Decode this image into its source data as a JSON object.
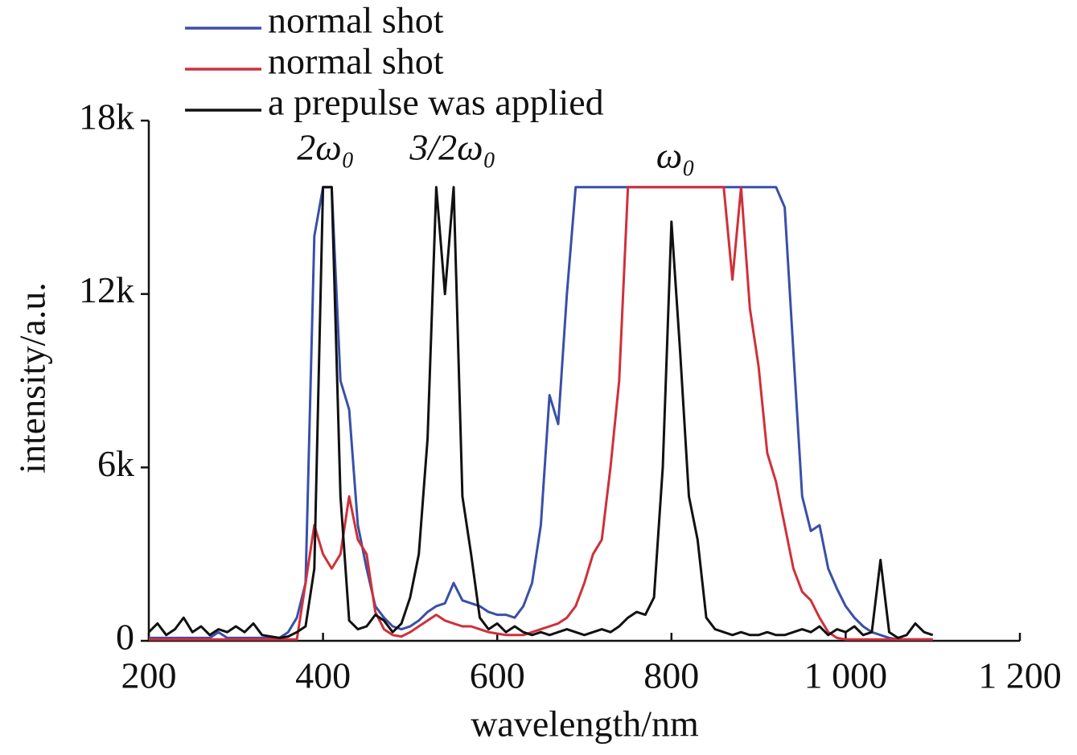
{
  "chart_data": {
    "type": "line",
    "xlabel": "wavelength/nm",
    "ylabel": "intensity/a.u.",
    "annotations": [
      "2ω₀",
      "3/2ω₀",
      "ω₀"
    ],
    "xlim": [
      200,
      1200
    ],
    "ylim": [
      0,
      18000
    ],
    "xticks": [
      200,
      400,
      600,
      800,
      {
        "value": 1000,
        "label": "1 000"
      },
      {
        "value": 1200,
        "label": "1 200"
      }
    ],
    "yticks": [
      0,
      {
        "value": 6000,
        "label": "6k"
      },
      {
        "value": 12000,
        "label": "12k"
      },
      {
        "value": 18000,
        "label": "18k"
      }
    ],
    "x": [
      200,
      210,
      220,
      230,
      240,
      250,
      260,
      270,
      280,
      290,
      300,
      310,
      320,
      330,
      340,
      350,
      360,
      370,
      380,
      390,
      400,
      410,
      420,
      430,
      440,
      450,
      460,
      470,
      480,
      490,
      500,
      510,
      520,
      530,
      540,
      550,
      560,
      570,
      580,
      590,
      600,
      610,
      620,
      630,
      640,
      650,
      660,
      670,
      680,
      690,
      700,
      710,
      720,
      730,
      740,
      750,
      760,
      770,
      780,
      790,
      800,
      810,
      820,
      830,
      840,
      850,
      860,
      870,
      880,
      890,
      900,
      910,
      920,
      930,
      940,
      950,
      960,
      970,
      980,
      990,
      1000,
      1010,
      1020,
      1030,
      1040,
      1050,
      1060,
      1070,
      1080,
      1090,
      1100
    ],
    "series": [
      {
        "name": "normal shot",
        "color": "#3a4fa8",
        "values": [
          100,
          100,
          100,
          100,
          100,
          100,
          100,
          100,
          300,
          100,
          100,
          100,
          100,
          100,
          100,
          100,
          300,
          800,
          2000,
          14000,
          15700,
          15700,
          9000,
          8000,
          4000,
          2500,
          1200,
          800,
          500,
          400,
          500,
          700,
          1000,
          1200,
          1300,
          2000,
          1400,
          1300,
          1200,
          1000,
          900,
          900,
          800,
          1200,
          2000,
          4000,
          8500,
          7500,
          12000,
          15700,
          15700,
          15700,
          15700,
          15700,
          15700,
          15700,
          15700,
          15700,
          15700,
          15700,
          15700,
          15700,
          15700,
          15700,
          15700,
          15700,
          15700,
          15700,
          15700,
          15700,
          15700,
          15700,
          15700,
          15000,
          10000,
          5000,
          3800,
          4000,
          2500,
          1800,
          1200,
          800,
          500,
          300,
          200,
          100,
          50,
          50,
          50,
          50,
          50
        ]
      },
      {
        "name": "normal shot",
        "color": "#d0303a",
        "values": [
          50,
          50,
          50,
          50,
          50,
          50,
          50,
          50,
          50,
          50,
          50,
          50,
          50,
          50,
          50,
          50,
          50,
          50,
          2000,
          4000,
          3000,
          2500,
          3000,
          5000,
          3500,
          3000,
          1000,
          400,
          200,
          150,
          300,
          500,
          700,
          900,
          700,
          600,
          500,
          500,
          400,
          300,
          250,
          200,
          200,
          200,
          300,
          400,
          500,
          600,
          800,
          1200,
          2000,
          3000,
          3500,
          6000,
          9000,
          15700,
          15700,
          15700,
          15700,
          15700,
          15700,
          15700,
          15700,
          15700,
          15700,
          15700,
          15700,
          12500,
          15700,
          11500,
          9500,
          6500,
          5500,
          4000,
          2500,
          1700,
          1400,
          800,
          300,
          100,
          50,
          50,
          50,
          50,
          50,
          50,
          50,
          50,
          50,
          50,
          50
        ]
      },
      {
        "name": "a prepulse was applied",
        "color": "#111111",
        "values": [
          300,
          600,
          200,
          400,
          800,
          300,
          500,
          200,
          400,
          300,
          500,
          300,
          600,
          200,
          150,
          100,
          150,
          300,
          500,
          2500,
          15700,
          15700,
          5000,
          700,
          400,
          500,
          900,
          700,
          300,
          600,
          1500,
          3000,
          7000,
          15700,
          12000,
          15700,
          5000,
          3000,
          800,
          400,
          600,
          300,
          500,
          300,
          200,
          300,
          200,
          300,
          400,
          300,
          200,
          300,
          400,
          300,
          500,
          800,
          1000,
          900,
          1500,
          6000,
          14500,
          10000,
          5000,
          3500,
          800,
          400,
          300,
          200,
          300,
          200,
          200,
          300,
          200,
          200,
          300,
          400,
          300,
          500,
          200,
          400,
          300,
          500,
          200,
          300,
          2800,
          300,
          100,
          200,
          600,
          300,
          200
        ]
      }
    ]
  }
}
